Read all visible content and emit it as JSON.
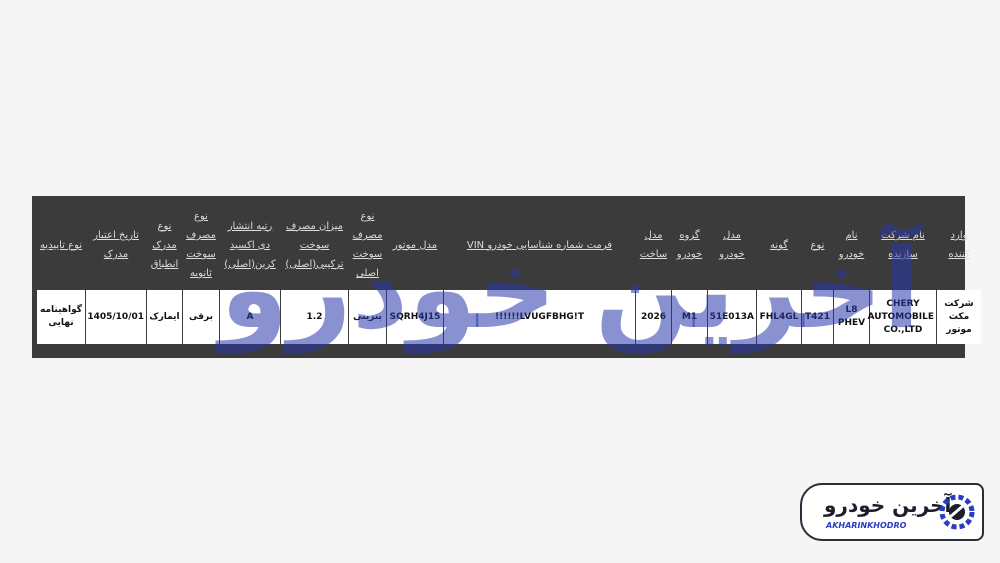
{
  "table": {
    "columns": [
      {
        "header": "وارد کننده",
        "value": "شرکت مکث موتور"
      },
      {
        "header": "نام شرکت سازنده",
        "value": "CHERY AUTOMOBILE CO.,LTD"
      },
      {
        "header": "نام خودرو",
        "value": "L8 PHEV"
      },
      {
        "header": "نوع",
        "value": "T421"
      },
      {
        "header": "گونه",
        "value": "FHL4GL"
      },
      {
        "header": "مدل خودرو",
        "value": "51E013A"
      },
      {
        "header": "گروه خودرو",
        "value": "M1"
      },
      {
        "header": "مدل ساخت",
        "value": "2026"
      },
      {
        "header": "فرمت شماره شناسایی خودرو VIN",
        "value": "LVUGFBHG!T!!!!!!"
      },
      {
        "header": "مدل موتور",
        "value": "SQRH4J15"
      },
      {
        "header": "نوع مصرف سوخت اصلی",
        "value": "بنزینی"
      },
      {
        "header": "میزان مصرف سوخت ترکیبی(اصلی)",
        "value": "1.2"
      },
      {
        "header": "رتبه انتشار دی اکسید کربن(اصلی)",
        "value": "A"
      },
      {
        "header": "نوع مصرف سوخت ثانویه",
        "value": "برقی"
      },
      {
        "header": "نوع مدرک انطباق",
        "value": "ایمارک"
      },
      {
        "header": "تاریخ اعتبار مدرک",
        "value": "1405/10/01"
      },
      {
        "header": "نوع تاییدیه",
        "value": "گواهینامه نهایی"
      }
    ]
  },
  "watermark": "آخرین خودرو",
  "logo": {
    "title": "آخرین خودرو",
    "subtitle": "AKHARINKHODRO"
  }
}
